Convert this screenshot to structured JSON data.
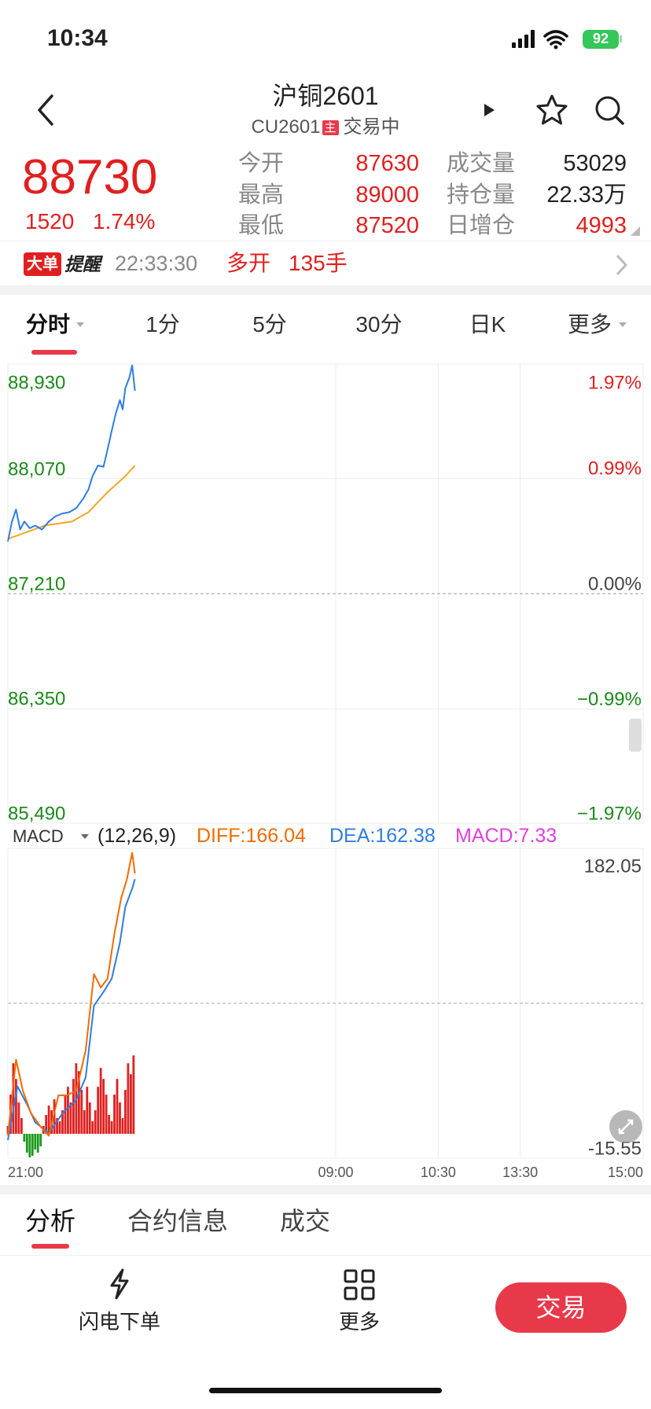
{
  "status_bar": {
    "time": "10:34",
    "battery": "92"
  },
  "header": {
    "title": "沪铜2601",
    "code": "CU2601",
    "badge": "主",
    "status": "交易中"
  },
  "quote": {
    "price": 88730,
    "change": 1520,
    "change_pct": "1.74%",
    "stats": [
      {
        "label": "今开",
        "value": 87630
      },
      {
        "label": "成交量",
        "value": 53029
      },
      {
        "label": "最高",
        "value": 89000
      },
      {
        "label": "持仓量",
        "value": "22.33万"
      },
      {
        "label": "最低",
        "value": 87520
      },
      {
        "label": "日增仓",
        "value": 4993
      }
    ]
  },
  "alert": {
    "badge": "大单",
    "title": "提醒",
    "time": "22:33:30",
    "action": "多开",
    "volume": "135手"
  },
  "period_tabs": {
    "items": [
      "分时",
      "1分",
      "5分",
      "30分",
      "日K",
      "更多"
    ],
    "active": 0
  },
  "indicator": {
    "name": "MACD",
    "params": "(12,26,9)"
  },
  "chart_data": [
    {
      "type": "line",
      "xlim": [
        0,
        465
      ],
      "xticks": [
        0,
        240,
        315,
        375,
        465
      ],
      "ylim": [
        85490,
        88930
      ],
      "yticks": [
        {
          "value": 88930,
          "label": "88,930"
        },
        {
          "value": 88070,
          "label": "88,070"
        },
        {
          "value": 87210,
          "label": "87,210"
        },
        {
          "value": 86350,
          "label": "86,350"
        },
        {
          "value": 85490,
          "label": "85,490"
        }
      ],
      "y2lim": [
        -1.97,
        1.97
      ],
      "y2ticks": [
        {
          "value": 1.97,
          "label": "1.97%"
        },
        {
          "value": 0.99,
          "label": "0.99%"
        },
        {
          "value": 0,
          "label": "0.00%"
        },
        {
          "value": -0.99,
          "label": "−0.99%"
        },
        {
          "value": -1.97,
          "label": "−1.97%"
        }
      ],
      "series": [
        {
          "color": "#2f7de1",
          "x": [
            0,
            3,
            6,
            9,
            12,
            16,
            20,
            25,
            30,
            35,
            40,
            45,
            50,
            55,
            59,
            62,
            66,
            70,
            73,
            76,
            79,
            82,
            84,
            86,
            89,
            91,
            93
          ],
          "values": [
            87600,
            87750,
            87840,
            87690,
            87750,
            87700,
            87720,
            87690,
            87750,
            87790,
            87810,
            87820,
            87850,
            87920,
            87990,
            88090,
            88170,
            88160,
            88290,
            88430,
            88560,
            88660,
            88590,
            88750,
            88830,
            88920,
            88730
          ]
        },
        {
          "color": "#f5a623",
          "x": [
            0,
            27,
            47,
            59,
            73,
            86,
            93
          ],
          "values": [
            87620,
            87720,
            87750,
            87820,
            87970,
            88090,
            88170
          ]
        }
      ]
    },
    {
      "type": "combo",
      "xlim": [
        0,
        465
      ],
      "xticks": [
        {
          "value": 0,
          "label": "21:00"
        },
        {
          "value": 240,
          "label": "09:00"
        },
        {
          "value": 315,
          "label": "10:30"
        },
        {
          "value": 375,
          "label": "13:30"
        },
        {
          "value": 465,
          "label": "15:00"
        }
      ],
      "ylim": [
        -15.55,
        182.05
      ],
      "yticks": [
        182.05,
        -15.55
      ],
      "series": [
        {
          "label": "DIFF:166.04",
          "color": "#f26b00",
          "x": [
            0,
            6,
            11,
            17,
            24,
            30,
            37,
            43,
            50,
            57,
            63,
            68,
            73,
            78,
            83,
            87,
            91,
            93
          ],
          "values": [
            -1.2,
            47.4,
            27.4,
            13.0,
            4.5,
            -1.2,
            24.5,
            24.5,
            27.4,
            53.2,
            101.9,
            93.3,
            99.0,
            127.6,
            150.5,
            162.0,
            179.2,
            166.04
          ]
        },
        {
          "label": "DEA:162.38",
          "color": "#2f7de1",
          "x": [
            0,
            7,
            14,
            20,
            30,
            40,
            50,
            57,
            63,
            70,
            76,
            82,
            86,
            91,
            93
          ],
          "values": [
            -4.1,
            30.3,
            18.8,
            7.3,
            0.5,
            13.0,
            21.7,
            36.0,
            81.8,
            90.4,
            99.0,
            121.9,
            144.8,
            156.3,
            162.38
          ]
        },
        {
          "label": "MACD:7.33",
          "color": "#e040e0",
          "kind": "bar",
          "up_color": "#e02020",
          "down_color": "#1a9a1a",
          "x": [
            0,
            2,
            4,
            6,
            8,
            10,
            12,
            14,
            16,
            18,
            20,
            22,
            24,
            26,
            28,
            30,
            32,
            34,
            36,
            38,
            40,
            42,
            44,
            46,
            48,
            50,
            52,
            54,
            56,
            58,
            60,
            62,
            64,
            66,
            68,
            70,
            72,
            74,
            76,
            78,
            80,
            82,
            84,
            86,
            88,
            90,
            92
          ],
          "values": [
            5,
            25,
            45,
            35,
            20,
            10,
            -5,
            -12,
            -15,
            -14,
            -10,
            -12,
            -8,
            5,
            12,
            18,
            15,
            22,
            10,
            8,
            15,
            25,
            30,
            20,
            35,
            45,
            40,
            28,
            15,
            30,
            20,
            8,
            15,
            30,
            42,
            35,
            25,
            12,
            8,
            25,
            35,
            20,
            10,
            28,
            45,
            38,
            50
          ]
        }
      ]
    }
  ],
  "detail_tabs": {
    "items": [
      "分析",
      "合约信息",
      "成交"
    ],
    "active": 0
  },
  "toolbar": {
    "flash_order": "闪电下单",
    "more": "更多",
    "trade": "交易"
  }
}
